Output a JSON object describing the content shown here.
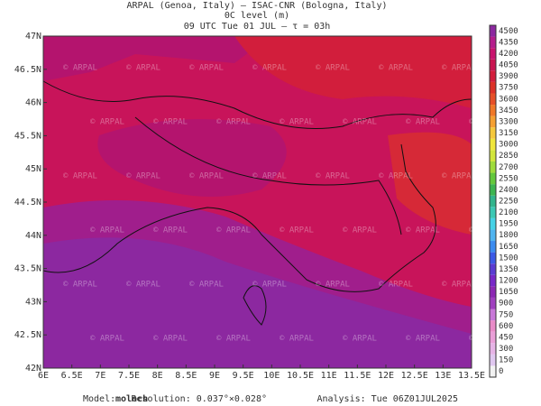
{
  "header": {
    "line1": "ARPAL (Genoa, Italy)  –  ISAC-CNR (Bologna, Italy)",
    "line2": "0C level (m)",
    "line3": "09 UTC Tue 01 JUL  –  τ = 03h"
  },
  "map": {
    "lat_labels": [
      "42N",
      "42.5N",
      "43N",
      "43.5N",
      "44N",
      "44.5N",
      "45N",
      "45.5N",
      "46N",
      "46.5N",
      "47N"
    ],
    "lon_labels": [
      "6E",
      "6.5E",
      "7E",
      "7.5E",
      "8E",
      "8.5E",
      "9E",
      "9.5E",
      "10E",
      "10.5E",
      "11E",
      "11.5E",
      "12E",
      "12.5E",
      "13E",
      "13.5E"
    ],
    "watermark": "© ARPAL"
  },
  "colorbar": {
    "levels": [
      0,
      150,
      300,
      450,
      600,
      750,
      900,
      1050,
      1200,
      1350,
      1500,
      1650,
      1800,
      1950,
      2100,
      2250,
      2400,
      2550,
      2700,
      2850,
      3000,
      3150,
      3300,
      3450,
      3600,
      3750,
      3900,
      4050,
      4200,
      4350,
      4500
    ],
    "colors": [
      "#f2f2f2",
      "#e0c8f0",
      "#e6b4e6",
      "#eaa0d8",
      "#e98cc8",
      "#c878d8",
      "#a040c0",
      "#8c28b4",
      "#7828c8",
      "#5a3cd2",
      "#3c5ae6",
      "#3c8cf0",
      "#50b4f0",
      "#46d2e6",
      "#3cc8b4",
      "#32b48c",
      "#3cb450",
      "#64c83c",
      "#a0dc3c",
      "#d2e63c",
      "#f0e63c",
      "#f5c83c",
      "#f5a032",
      "#f07828",
      "#e65028",
      "#dc3228",
      "#d21e3c",
      "#c81450",
      "#c8146e",
      "#b41e8c",
      "#8c28a0"
    ]
  },
  "footer": {
    "model_label": "Model:",
    "model": "moloch",
    "resolution": "Resolution: 0.037°×0.028°",
    "analysis": "Analysis: Tue 06Z01JUL2025"
  }
}
